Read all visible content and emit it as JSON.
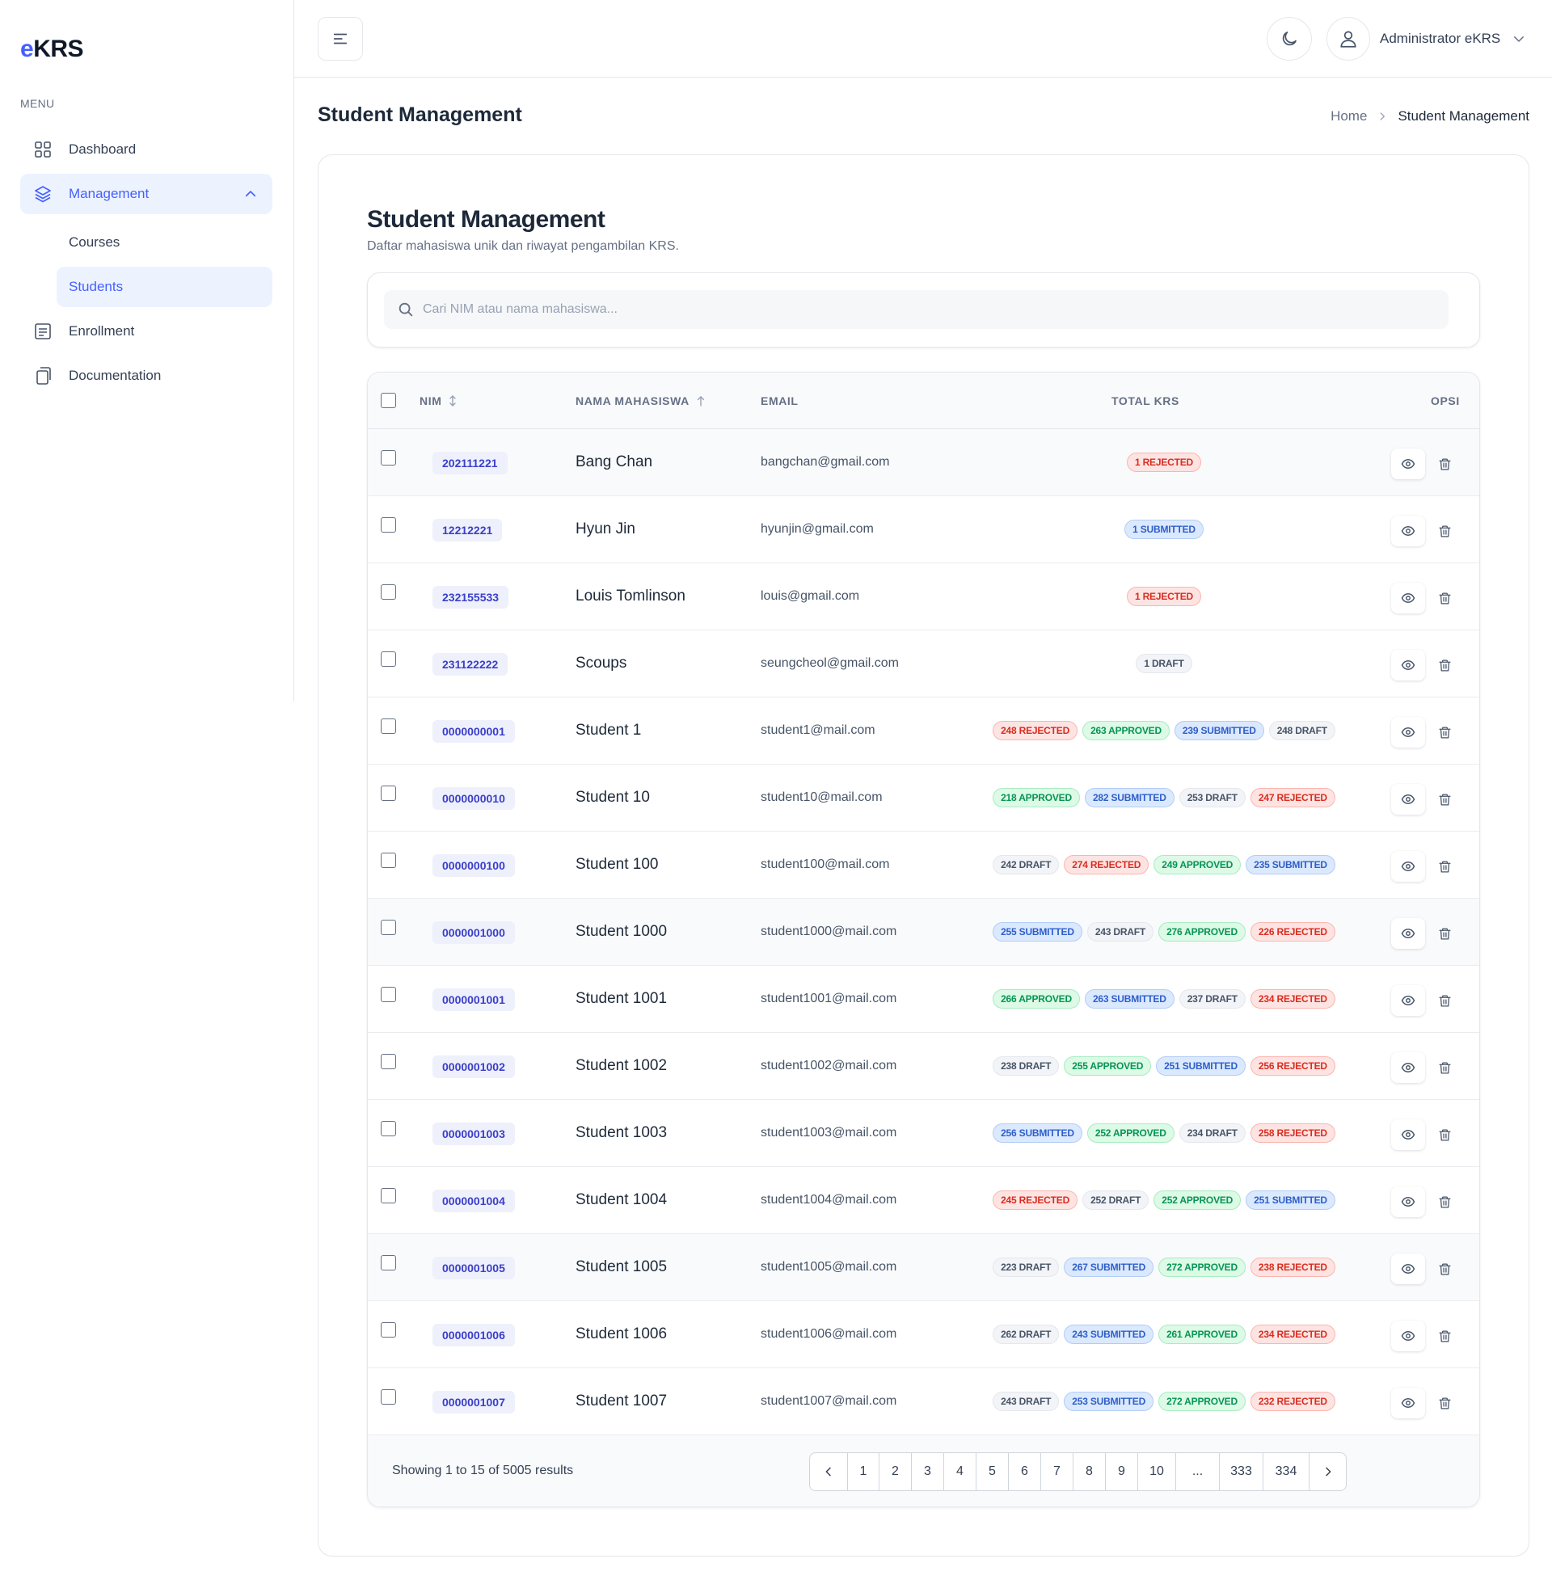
{
  "app": {
    "logo_prefix": "e",
    "logo_rest": "KRS"
  },
  "sidebar": {
    "menu_label": "MENU",
    "items": [
      {
        "label": "Dashboard"
      },
      {
        "label": "Management"
      },
      {
        "label": "Courses"
      },
      {
        "label": "Students"
      },
      {
        "label": "Enrollment"
      },
      {
        "label": "Documentation"
      }
    ]
  },
  "header": {
    "user_name": "Administrator eKRS"
  },
  "page": {
    "title": "Student Management",
    "breadcrumb": {
      "home": "Home",
      "current": "Student Management"
    }
  },
  "card": {
    "title": "Student Management",
    "subtitle": "Daftar mahasiswa unik dan riwayat pengambilan KRS.",
    "search_placeholder": "Cari NIM atau nama mahasiswa..."
  },
  "table": {
    "columns": {
      "nim": "NIM",
      "name": "NAMA MAHASISWA",
      "email": "EMAIL",
      "krs": "TOTAL KRS",
      "options": "OPSI"
    },
    "rows": [
      {
        "nim": "202111221",
        "name": "Bang Chan",
        "email": "bangchan@gmail.com",
        "krs": [
          {
            "text": "1 REJECTED",
            "status": "rejected"
          }
        ]
      },
      {
        "nim": "12212221",
        "name": "Hyun Jin",
        "email": "hyunjin@gmail.com",
        "krs": [
          {
            "text": "1 SUBMITTED",
            "status": "submitted"
          }
        ]
      },
      {
        "nim": "232155533",
        "name": "Louis Tomlinson",
        "email": "louis@gmail.com",
        "krs": [
          {
            "text": "1 REJECTED",
            "status": "rejected"
          }
        ]
      },
      {
        "nim": "231122222",
        "name": "Scoups",
        "email": "seungcheol@gmail.com",
        "krs": [
          {
            "text": "1 DRAFT",
            "status": "draft"
          }
        ]
      },
      {
        "nim": "0000000001",
        "name": "Student 1",
        "email": "student1@mail.com",
        "krs": [
          {
            "text": "248 REJECTED",
            "status": "rejected"
          },
          {
            "text": "263 APPROVED",
            "status": "approved"
          },
          {
            "text": "239 SUBMITTED",
            "status": "submitted"
          },
          {
            "text": "248 DRAFT",
            "status": "draft"
          }
        ]
      },
      {
        "nim": "0000000010",
        "name": "Student 10",
        "email": "student10@mail.com",
        "krs": [
          {
            "text": "218 APPROVED",
            "status": "approved"
          },
          {
            "text": "282 SUBMITTED",
            "status": "submitted"
          },
          {
            "text": "253 DRAFT",
            "status": "draft"
          },
          {
            "text": "247 REJECTED",
            "status": "rejected"
          }
        ]
      },
      {
        "nim": "0000000100",
        "name": "Student 100",
        "email": "student100@mail.com",
        "krs": [
          {
            "text": "242 DRAFT",
            "status": "draft"
          },
          {
            "text": "274 REJECTED",
            "status": "rejected"
          },
          {
            "text": "249 APPROVED",
            "status": "approved"
          },
          {
            "text": "235 SUBMITTED",
            "status": "submitted"
          }
        ]
      },
      {
        "nim": "0000001000",
        "name": "Student 1000",
        "email": "student1000@mail.com",
        "krs": [
          {
            "text": "255 SUBMITTED",
            "status": "submitted"
          },
          {
            "text": "243 DRAFT",
            "status": "draft"
          },
          {
            "text": "276 APPROVED",
            "status": "approved"
          },
          {
            "text": "226 REJECTED",
            "status": "rejected"
          }
        ]
      },
      {
        "nim": "0000001001",
        "name": "Student 1001",
        "email": "student1001@mail.com",
        "krs": [
          {
            "text": "266 APPROVED",
            "status": "approved"
          },
          {
            "text": "263 SUBMITTED",
            "status": "submitted"
          },
          {
            "text": "237 DRAFT",
            "status": "draft"
          },
          {
            "text": "234 REJECTED",
            "status": "rejected"
          }
        ]
      },
      {
        "nim": "0000001002",
        "name": "Student 1002",
        "email": "student1002@mail.com",
        "krs": [
          {
            "text": "238 DRAFT",
            "status": "draft"
          },
          {
            "text": "255 APPROVED",
            "status": "approved"
          },
          {
            "text": "251 SUBMITTED",
            "status": "submitted"
          },
          {
            "text": "256 REJECTED",
            "status": "rejected"
          }
        ]
      },
      {
        "nim": "0000001003",
        "name": "Student 1003",
        "email": "student1003@mail.com",
        "krs": [
          {
            "text": "256 SUBMITTED",
            "status": "submitted"
          },
          {
            "text": "252 APPROVED",
            "status": "approved"
          },
          {
            "text": "234 DRAFT",
            "status": "draft"
          },
          {
            "text": "258 REJECTED",
            "status": "rejected"
          }
        ]
      },
      {
        "nim": "0000001004",
        "name": "Student 1004",
        "email": "student1004@mail.com",
        "krs": [
          {
            "text": "245 REJECTED",
            "status": "rejected"
          },
          {
            "text": "252 DRAFT",
            "status": "draft"
          },
          {
            "text": "252 APPROVED",
            "status": "approved"
          },
          {
            "text": "251 SUBMITTED",
            "status": "submitted"
          }
        ]
      },
      {
        "nim": "0000001005",
        "name": "Student 1005",
        "email": "student1005@mail.com",
        "krs": [
          {
            "text": "223 DRAFT",
            "status": "draft"
          },
          {
            "text": "267 SUBMITTED",
            "status": "submitted"
          },
          {
            "text": "272 APPROVED",
            "status": "approved"
          },
          {
            "text": "238 REJECTED",
            "status": "rejected"
          }
        ]
      },
      {
        "nim": "0000001006",
        "name": "Student 1006",
        "email": "student1006@mail.com",
        "krs": [
          {
            "text": "262 DRAFT",
            "status": "draft"
          },
          {
            "text": "243 SUBMITTED",
            "status": "submitted"
          },
          {
            "text": "261 APPROVED",
            "status": "approved"
          },
          {
            "text": "234 REJECTED",
            "status": "rejected"
          }
        ]
      },
      {
        "nim": "0000001007",
        "name": "Student 1007",
        "email": "student1007@mail.com",
        "krs": [
          {
            "text": "243 DRAFT",
            "status": "draft"
          },
          {
            "text": "253 SUBMITTED",
            "status": "submitted"
          },
          {
            "text": "272 APPROVED",
            "status": "approved"
          },
          {
            "text": "232 REJECTED",
            "status": "rejected"
          }
        ]
      }
    ]
  },
  "footer": {
    "showing": "Showing 1 to 15 of 5005 results",
    "pages": [
      "1",
      "2",
      "3",
      "4",
      "5",
      "6",
      "7",
      "8",
      "9",
      "10",
      "...",
      "333",
      "334"
    ]
  },
  "icons": {
    "dashboard": "grid-icon",
    "management": "layers-icon",
    "enrollment": "list-icon",
    "documentation": "copy-icon",
    "menu": "hamburger-icon",
    "theme": "moon-icon",
    "user": "user-icon",
    "search": "search-icon",
    "view": "eye-icon",
    "delete": "trash-icon"
  },
  "colors": {
    "accent": "#465fff",
    "accent_bg": "#ecf3ff"
  }
}
